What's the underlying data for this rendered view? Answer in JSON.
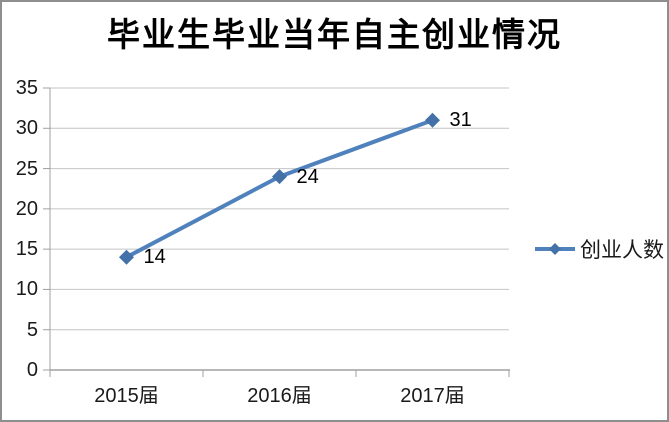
{
  "chart_data": {
    "type": "line",
    "title": "毕业生毕业当年自主创业情况",
    "categories": [
      "2015届",
      "2016届",
      "2017届"
    ],
    "series": [
      {
        "name": "创业人数",
        "values": [
          14,
          24,
          31
        ],
        "data_labels": [
          "14",
          "24",
          "31"
        ]
      }
    ],
    "xlabel": "",
    "ylabel": "",
    "ylim": [
      0,
      35
    ],
    "ytick_step": 5,
    "yticks": [
      "0",
      "5",
      "10",
      "15",
      "20",
      "25",
      "30",
      "35"
    ],
    "grid": "horizontal gridlines only",
    "legend_position": "right",
    "marker_shape": "diamond",
    "colors": {
      "series_line": "#4F81BD",
      "marker_fill": "#4472A8",
      "gridline": "#C4C4C4",
      "axis": "#A0A0A0",
      "frame_border": "#8E8E8E",
      "background": "#FFFFFF",
      "text": "#1A1A1A"
    }
  }
}
